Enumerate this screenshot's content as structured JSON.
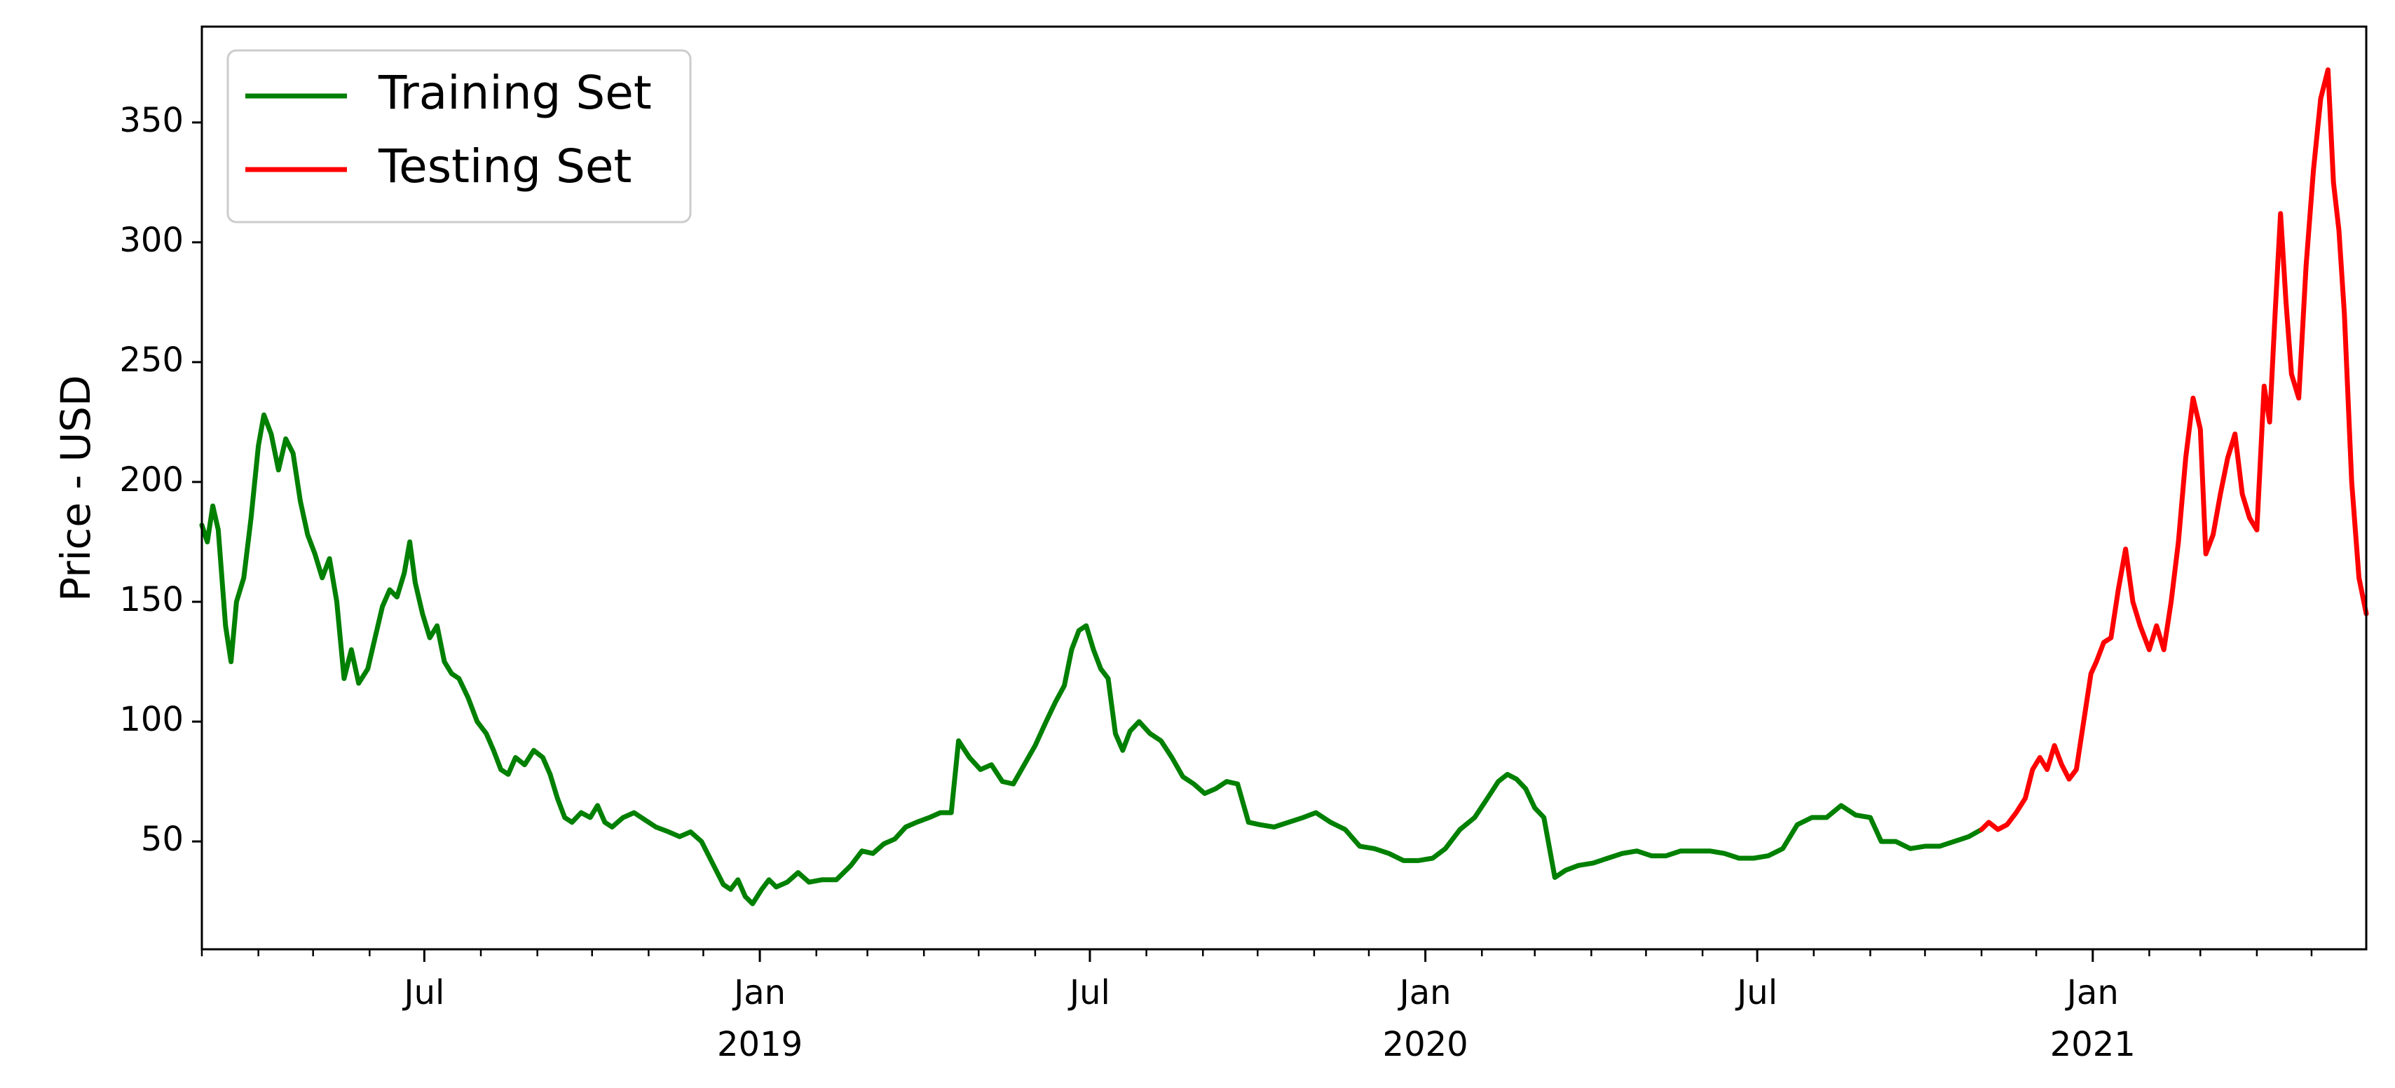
{
  "chart_data": {
    "type": "line",
    "title": "",
    "xlabel": "",
    "ylabel": "Price - USD",
    "x_range": [
      "2018-03-01",
      "2021-05-31"
    ],
    "ylim": [
      5,
      390
    ],
    "y_ticks": [
      50,
      100,
      150,
      200,
      250,
      300,
      350
    ],
    "x_ticks": [
      {
        "date": "2018-07-01",
        "label": "Jul",
        "year": ""
      },
      {
        "date": "2019-01-01",
        "label": "Jan",
        "year": "2019"
      },
      {
        "date": "2019-07-01",
        "label": "Jul",
        "year": ""
      },
      {
        "date": "2020-01-01",
        "label": "Jan",
        "year": "2020"
      },
      {
        "date": "2020-07-01",
        "label": "Jul",
        "year": ""
      },
      {
        "date": "2021-01-01",
        "label": "Jan",
        "year": "2021"
      }
    ],
    "grid": false,
    "legend_position": "upper-left",
    "series": [
      {
        "name": "Training Set",
        "color": "#008000",
        "points": [
          [
            "2018-03-01",
            182
          ],
          [
            "2018-03-04",
            175
          ],
          [
            "2018-03-07",
            190
          ],
          [
            "2018-03-10",
            180
          ],
          [
            "2018-03-14",
            140
          ],
          [
            "2018-03-17",
            125
          ],
          [
            "2018-03-20",
            150
          ],
          [
            "2018-03-24",
            160
          ],
          [
            "2018-03-28",
            185
          ],
          [
            "2018-04-01",
            215
          ],
          [
            "2018-04-04",
            228
          ],
          [
            "2018-04-08",
            220
          ],
          [
            "2018-04-12",
            205
          ],
          [
            "2018-04-16",
            218
          ],
          [
            "2018-04-20",
            212
          ],
          [
            "2018-04-24",
            192
          ],
          [
            "2018-04-28",
            178
          ],
          [
            "2018-05-02",
            170
          ],
          [
            "2018-05-06",
            160
          ],
          [
            "2018-05-10",
            168
          ],
          [
            "2018-05-14",
            150
          ],
          [
            "2018-05-18",
            118
          ],
          [
            "2018-05-22",
            130
          ],
          [
            "2018-05-26",
            116
          ],
          [
            "2018-05-31",
            122
          ],
          [
            "2018-06-04",
            135
          ],
          [
            "2018-06-08",
            148
          ],
          [
            "2018-06-12",
            155
          ],
          [
            "2018-06-16",
            152
          ],
          [
            "2018-06-20",
            162
          ],
          [
            "2018-06-23",
            175
          ],
          [
            "2018-06-26",
            158
          ],
          [
            "2018-06-30",
            145
          ],
          [
            "2018-07-04",
            135
          ],
          [
            "2018-07-08",
            140
          ],
          [
            "2018-07-12",
            125
          ],
          [
            "2018-07-16",
            120
          ],
          [
            "2018-07-20",
            118
          ],
          [
            "2018-07-25",
            110
          ],
          [
            "2018-07-30",
            100
          ],
          [
            "2018-08-04",
            95
          ],
          [
            "2018-08-08",
            88
          ],
          [
            "2018-08-12",
            80
          ],
          [
            "2018-08-16",
            78
          ],
          [
            "2018-08-20",
            85
          ],
          [
            "2018-08-25",
            82
          ],
          [
            "2018-08-30",
            88
          ],
          [
            "2018-09-04",
            85
          ],
          [
            "2018-09-08",
            78
          ],
          [
            "2018-09-12",
            68
          ],
          [
            "2018-09-16",
            60
          ],
          [
            "2018-09-20",
            58
          ],
          [
            "2018-09-25",
            62
          ],
          [
            "2018-09-30",
            60
          ],
          [
            "2018-10-04",
            65
          ],
          [
            "2018-10-08",
            58
          ],
          [
            "2018-10-12",
            56
          ],
          [
            "2018-10-18",
            60
          ],
          [
            "2018-10-24",
            62
          ],
          [
            "2018-10-30",
            59
          ],
          [
            "2018-11-05",
            56
          ],
          [
            "2018-11-12",
            54
          ],
          [
            "2018-11-18",
            52
          ],
          [
            "2018-11-24",
            54
          ],
          [
            "2018-11-30",
            50
          ],
          [
            "2018-12-04",
            44
          ],
          [
            "2018-12-08",
            38
          ],
          [
            "2018-12-12",
            32
          ],
          [
            "2018-12-16",
            30
          ],
          [
            "2018-12-20",
            34
          ],
          [
            "2018-12-24",
            27
          ],
          [
            "2018-12-28",
            24
          ],
          [
            "2019-01-02",
            30
          ],
          [
            "2019-01-06",
            34
          ],
          [
            "2019-01-10",
            31
          ],
          [
            "2019-01-16",
            33
          ],
          [
            "2019-01-22",
            37
          ],
          [
            "2019-01-28",
            33
          ],
          [
            "2019-02-04",
            34
          ],
          [
            "2019-02-12",
            34
          ],
          [
            "2019-02-20",
            40
          ],
          [
            "2019-02-26",
            46
          ],
          [
            "2019-03-04",
            45
          ],
          [
            "2019-03-10",
            49
          ],
          [
            "2019-03-16",
            51
          ],
          [
            "2019-03-22",
            56
          ],
          [
            "2019-03-28",
            58
          ],
          [
            "2019-04-04",
            60
          ],
          [
            "2019-04-10",
            62
          ],
          [
            "2019-04-16",
            62
          ],
          [
            "2019-04-20",
            92
          ],
          [
            "2019-04-26",
            85
          ],
          [
            "2019-05-02",
            80
          ],
          [
            "2019-05-08",
            82
          ],
          [
            "2019-05-14",
            75
          ],
          [
            "2019-05-20",
            74
          ],
          [
            "2019-05-26",
            82
          ],
          [
            "2019-06-01",
            90
          ],
          [
            "2019-06-07",
            100
          ],
          [
            "2019-06-12",
            108
          ],
          [
            "2019-06-17",
            115
          ],
          [
            "2019-06-21",
            130
          ],
          [
            "2019-06-25",
            138
          ],
          [
            "2019-06-29",
            140
          ],
          [
            "2019-07-03",
            130
          ],
          [
            "2019-07-07",
            122
          ],
          [
            "2019-07-11",
            118
          ],
          [
            "2019-07-15",
            95
          ],
          [
            "2019-07-19",
            88
          ],
          [
            "2019-07-23",
            96
          ],
          [
            "2019-07-28",
            100
          ],
          [
            "2019-08-03",
            95
          ],
          [
            "2019-08-09",
            92
          ],
          [
            "2019-08-15",
            85
          ],
          [
            "2019-08-21",
            77
          ],
          [
            "2019-08-27",
            74
          ],
          [
            "2019-09-02",
            70
          ],
          [
            "2019-09-08",
            72
          ],
          [
            "2019-09-14",
            75
          ],
          [
            "2019-09-20",
            74
          ],
          [
            "2019-09-26",
            58
          ],
          [
            "2019-10-02",
            57
          ],
          [
            "2019-10-10",
            56
          ],
          [
            "2019-10-18",
            58
          ],
          [
            "2019-10-26",
            60
          ],
          [
            "2019-11-02",
            62
          ],
          [
            "2019-11-10",
            58
          ],
          [
            "2019-11-18",
            55
          ],
          [
            "2019-11-26",
            48
          ],
          [
            "2019-12-04",
            47
          ],
          [
            "2019-12-12",
            45
          ],
          [
            "2019-12-20",
            42
          ],
          [
            "2019-12-28",
            42
          ],
          [
            "2020-01-05",
            43
          ],
          [
            "2020-01-12",
            47
          ],
          [
            "2020-01-20",
            55
          ],
          [
            "2020-01-28",
            60
          ],
          [
            "2020-02-04",
            68
          ],
          [
            "2020-02-10",
            75
          ],
          [
            "2020-02-15",
            78
          ],
          [
            "2020-02-20",
            76
          ],
          [
            "2020-02-25",
            72
          ],
          [
            "2020-03-01",
            64
          ],
          [
            "2020-03-06",
            60
          ],
          [
            "2020-03-12",
            35
          ],
          [
            "2020-03-18",
            38
          ],
          [
            "2020-03-25",
            40
          ],
          [
            "2020-04-02",
            41
          ],
          [
            "2020-04-10",
            43
          ],
          [
            "2020-04-18",
            45
          ],
          [
            "2020-04-26",
            46
          ],
          [
            "2020-05-04",
            44
          ],
          [
            "2020-05-12",
            44
          ],
          [
            "2020-05-20",
            46
          ],
          [
            "2020-05-28",
            46
          ],
          [
            "2020-06-05",
            46
          ],
          [
            "2020-06-13",
            45
          ],
          [
            "2020-06-21",
            43
          ],
          [
            "2020-06-29",
            43
          ],
          [
            "2020-07-07",
            44
          ],
          [
            "2020-07-15",
            47
          ],
          [
            "2020-07-23",
            57
          ],
          [
            "2020-07-31",
            60
          ],
          [
            "2020-08-08",
            60
          ],
          [
            "2020-08-16",
            65
          ],
          [
            "2020-08-24",
            61
          ],
          [
            "2020-09-01",
            60
          ],
          [
            "2020-09-07",
            50
          ],
          [
            "2020-09-15",
            50
          ],
          [
            "2020-09-23",
            47
          ],
          [
            "2020-10-01",
            48
          ],
          [
            "2020-10-09",
            48
          ],
          [
            "2020-10-17",
            50
          ],
          [
            "2020-10-25",
            52
          ],
          [
            "2020-11-01",
            55
          ]
        ]
      },
      {
        "name": "Testing Set",
        "color": "#ff0000",
        "points": [
          [
            "2020-11-01",
            55
          ],
          [
            "2020-11-05",
            58
          ],
          [
            "2020-11-10",
            55
          ],
          [
            "2020-11-15",
            57
          ],
          [
            "2020-11-20",
            62
          ],
          [
            "2020-11-25",
            68
          ],
          [
            "2020-11-29",
            80
          ],
          [
            "2020-12-03",
            85
          ],
          [
            "2020-12-07",
            80
          ],
          [
            "2020-12-11",
            90
          ],
          [
            "2020-12-15",
            82
          ],
          [
            "2020-12-19",
            76
          ],
          [
            "2020-12-23",
            80
          ],
          [
            "2020-12-27",
            100
          ],
          [
            "2020-12-31",
            120
          ],
          [
            "2021-01-03",
            125
          ],
          [
            "2021-01-07",
            133
          ],
          [
            "2021-01-11",
            135
          ],
          [
            "2021-01-15",
            155
          ],
          [
            "2021-01-19",
            172
          ],
          [
            "2021-01-23",
            150
          ],
          [
            "2021-01-27",
            140
          ],
          [
            "2021-02-01",
            130
          ],
          [
            "2021-02-05",
            140
          ],
          [
            "2021-02-09",
            130
          ],
          [
            "2021-02-13",
            150
          ],
          [
            "2021-02-17",
            175
          ],
          [
            "2021-02-21",
            210
          ],
          [
            "2021-02-25",
            235
          ],
          [
            "2021-03-01",
            222
          ],
          [
            "2021-03-04",
            170
          ],
          [
            "2021-03-08",
            178
          ],
          [
            "2021-03-12",
            195
          ],
          [
            "2021-03-16",
            210
          ],
          [
            "2021-03-20",
            220
          ],
          [
            "2021-03-24",
            195
          ],
          [
            "2021-03-28",
            185
          ],
          [
            "2021-04-01",
            180
          ],
          [
            "2021-04-05",
            240
          ],
          [
            "2021-04-08",
            225
          ],
          [
            "2021-04-11",
            270
          ],
          [
            "2021-04-14",
            312
          ],
          [
            "2021-04-17",
            275
          ],
          [
            "2021-04-20",
            245
          ],
          [
            "2021-04-24",
            235
          ],
          [
            "2021-04-28",
            290
          ],
          [
            "2021-05-02",
            330
          ],
          [
            "2021-05-06",
            360
          ],
          [
            "2021-05-10",
            372
          ],
          [
            "2021-05-13",
            325
          ],
          [
            "2021-05-16",
            305
          ],
          [
            "2021-05-19",
            270
          ],
          [
            "2021-05-23",
            200
          ],
          [
            "2021-05-27",
            160
          ],
          [
            "2021-05-31",
            145
          ]
        ]
      }
    ]
  }
}
